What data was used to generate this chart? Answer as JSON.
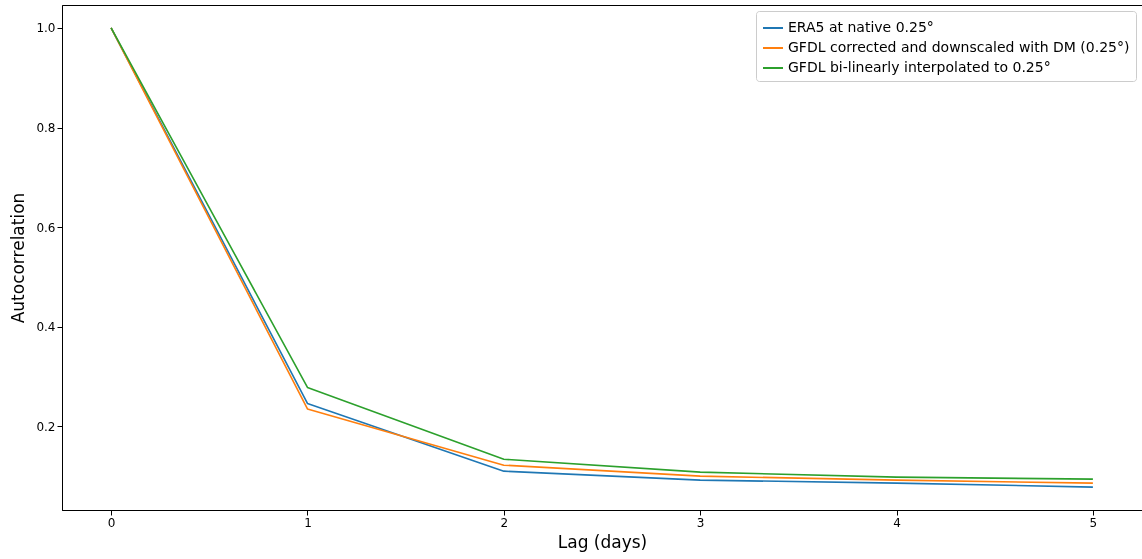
{
  "chart_data": {
    "type": "line",
    "xlabel": "Lag (days)",
    "ylabel": "Autocorrelation",
    "x": [
      0,
      1,
      2,
      3,
      4,
      5
    ],
    "series": [
      {
        "name": "ERA5 at native 0.25°",
        "color": "#1f77b4",
        "values": [
          1.0,
          0.246,
          0.11,
          0.092,
          0.086,
          0.078
        ]
      },
      {
        "name": "GFDL corrected and downscaled with DM (0.25°)",
        "color": "#ff7f0e",
        "values": [
          1.0,
          0.235,
          0.122,
          0.1,
          0.092,
          0.086
        ]
      },
      {
        "name": "GFDL bi-linearly interpolated to 0.25°",
        "color": "#2ca02c",
        "values": [
          1.0,
          0.278,
          0.134,
          0.108,
          0.098,
          0.094
        ]
      }
    ],
    "xlim": [
      -0.25,
      5.25
    ],
    "xticks": [
      0,
      1,
      2,
      3,
      4,
      5
    ],
    "ylim": [
      0.032,
      1.046
    ],
    "yticks": [
      0.2,
      0.4,
      0.6,
      0.8,
      {
        "value": 1,
        "label": "1.0"
      }
    ],
    "grid": false,
    "legend": "top right",
    "marker": "none",
    "line_style": "solid"
  }
}
